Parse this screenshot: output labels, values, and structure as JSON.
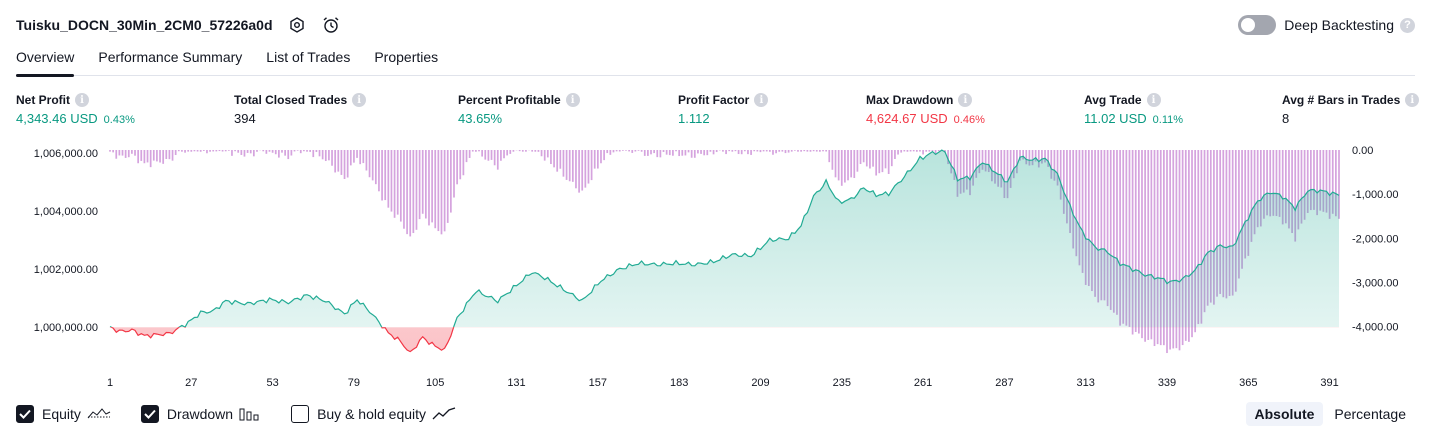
{
  "header": {
    "title": "Tuisku_DOCN_30Min_2CM0_57226a0d",
    "deep_backtesting_label": "Deep Backtesting",
    "deep_backtesting_enabled": false
  },
  "tabs": [
    {
      "label": "Overview",
      "active": true
    },
    {
      "label": "Performance Summary",
      "active": false
    },
    {
      "label": "List of Trades",
      "active": false
    },
    {
      "label": "Properties",
      "active": false
    }
  ],
  "stats": [
    {
      "label": "Net Profit",
      "value": "4,343.46 USD",
      "pct": "0.43%",
      "color": "#089981"
    },
    {
      "label": "Total Closed Trades",
      "value": "394",
      "pct": "",
      "color": "#131722"
    },
    {
      "label": "Percent Profitable",
      "value": "43.65%",
      "pct": "",
      "color": "#089981"
    },
    {
      "label": "Profit Factor",
      "value": "1.112",
      "pct": "",
      "color": "#089981"
    },
    {
      "label": "Max Drawdown",
      "value": "4,624.67 USD",
      "pct": "0.46%",
      "color": "#f23645"
    },
    {
      "label": "Avg Trade",
      "value": "11.02 USD",
      "pct": "0.11%",
      "color": "#089981"
    },
    {
      "label": "Avg # Bars in Trades",
      "value": "8",
      "pct": "",
      "color": "#131722"
    }
  ],
  "chart_data": {
    "type": "area",
    "x_ticks": [
      "1",
      "27",
      "53",
      "79",
      "105",
      "131",
      "157",
      "183",
      "209",
      "235",
      "261",
      "287",
      "313",
      "339",
      "365",
      "391"
    ],
    "x_range": [
      1,
      394
    ],
    "left_axis_ticks": [
      "1,006,000.00",
      "1,004,000.00",
      "1,002,000.00",
      "1,000,000.00"
    ],
    "right_axis_ticks": [
      "0.00",
      "-1,000.00",
      "-2,000.00",
      "-3,000.00",
      "-4,000.00"
    ],
    "equity_ylim": [
      998800,
      1006100
    ],
    "drawdown_ylim": [
      -4800,
      0
    ],
    "equity_baseline": 1000000,
    "equity_keypoints": [
      [
        1,
        1000000
      ],
      [
        4,
        999850
      ],
      [
        8,
        999900
      ],
      [
        12,
        999700
      ],
      [
        20,
        999780
      ],
      [
        26,
        1000150
      ],
      [
        30,
        1000500
      ],
      [
        34,
        1000550
      ],
      [
        38,
        1000900
      ],
      [
        45,
        1000800
      ],
      [
        52,
        1000950
      ],
      [
        58,
        1000850
      ],
      [
        64,
        1001100
      ],
      [
        70,
        1000900
      ],
      [
        76,
        1000450
      ],
      [
        80,
        1000950
      ],
      [
        84,
        1000550
      ],
      [
        88,
        1000050
      ],
      [
        90,
        999800
      ],
      [
        94,
        999500
      ],
      [
        97,
        999100
      ],
      [
        101,
        999650
      ],
      [
        104,
        999400
      ],
      [
        108,
        999200
      ],
      [
        112,
        1000300
      ],
      [
        118,
        1001250
      ],
      [
        125,
        1000900
      ],
      [
        130,
        1001350
      ],
      [
        136,
        1001900
      ],
      [
        140,
        1001700
      ],
      [
        146,
        1001300
      ],
      [
        152,
        1000900
      ],
      [
        158,
        1001600
      ],
      [
        164,
        1002000
      ],
      [
        170,
        1002200
      ],
      [
        176,
        1002150
      ],
      [
        182,
        1002200
      ],
      [
        188,
        1002150
      ],
      [
        194,
        1002250
      ],
      [
        200,
        1002500
      ],
      [
        206,
        1002450
      ],
      [
        212,
        1003000
      ],
      [
        218,
        1003050
      ],
      [
        222,
        1003500
      ],
      [
        226,
        1004500
      ],
      [
        230,
        1005000
      ],
      [
        234,
        1004300
      ],
      [
        238,
        1004400
      ],
      [
        242,
        1004800
      ],
      [
        246,
        1004550
      ],
      [
        250,
        1004600
      ],
      [
        256,
        1005300
      ],
      [
        260,
        1005800
      ],
      [
        264,
        1006000
      ],
      [
        268,
        1006050
      ],
      [
        272,
        1005100
      ],
      [
        276,
        1005150
      ],
      [
        280,
        1005700
      ],
      [
        284,
        1005350
      ],
      [
        288,
        1005000
      ],
      [
        292,
        1005850
      ],
      [
        296,
        1005750
      ],
      [
        300,
        1005800
      ],
      [
        304,
        1005250
      ],
      [
        308,
        1004150
      ],
      [
        312,
        1003250
      ],
      [
        316,
        1002750
      ],
      [
        320,
        1002600
      ],
      [
        324,
        1002200
      ],
      [
        328,
        1002000
      ],
      [
        332,
        1001800
      ],
      [
        336,
        1001700
      ],
      [
        340,
        1001550
      ],
      [
        344,
        1001650
      ],
      [
        348,
        1001950
      ],
      [
        352,
        1002550
      ],
      [
        356,
        1002800
      ],
      [
        360,
        1002750
      ],
      [
        364,
        1003600
      ],
      [
        368,
        1004350
      ],
      [
        372,
        1004650
      ],
      [
        376,
        1004500
      ],
      [
        380,
        1004100
      ],
      [
        384,
        1004700
      ],
      [
        388,
        1004700
      ],
      [
        394,
        1004550
      ]
    ],
    "legend": [
      {
        "label": "Equity",
        "checked": true,
        "icon": "equity-line-icon"
      },
      {
        "label": "Drawdown",
        "checked": true,
        "icon": "drawdown-bars-icon"
      },
      {
        "label": "Buy & hold equity",
        "checked": false,
        "icon": "buy-hold-line-icon"
      }
    ],
    "colors": {
      "equity_line": "#22ab94",
      "equity_negative": "#f23645",
      "equity_fill": "#22ab94",
      "drawdown_bar": "#ce93d8"
    }
  },
  "mode": {
    "absolute_label": "Absolute",
    "percentage_label": "Percentage",
    "selected": "Absolute"
  }
}
